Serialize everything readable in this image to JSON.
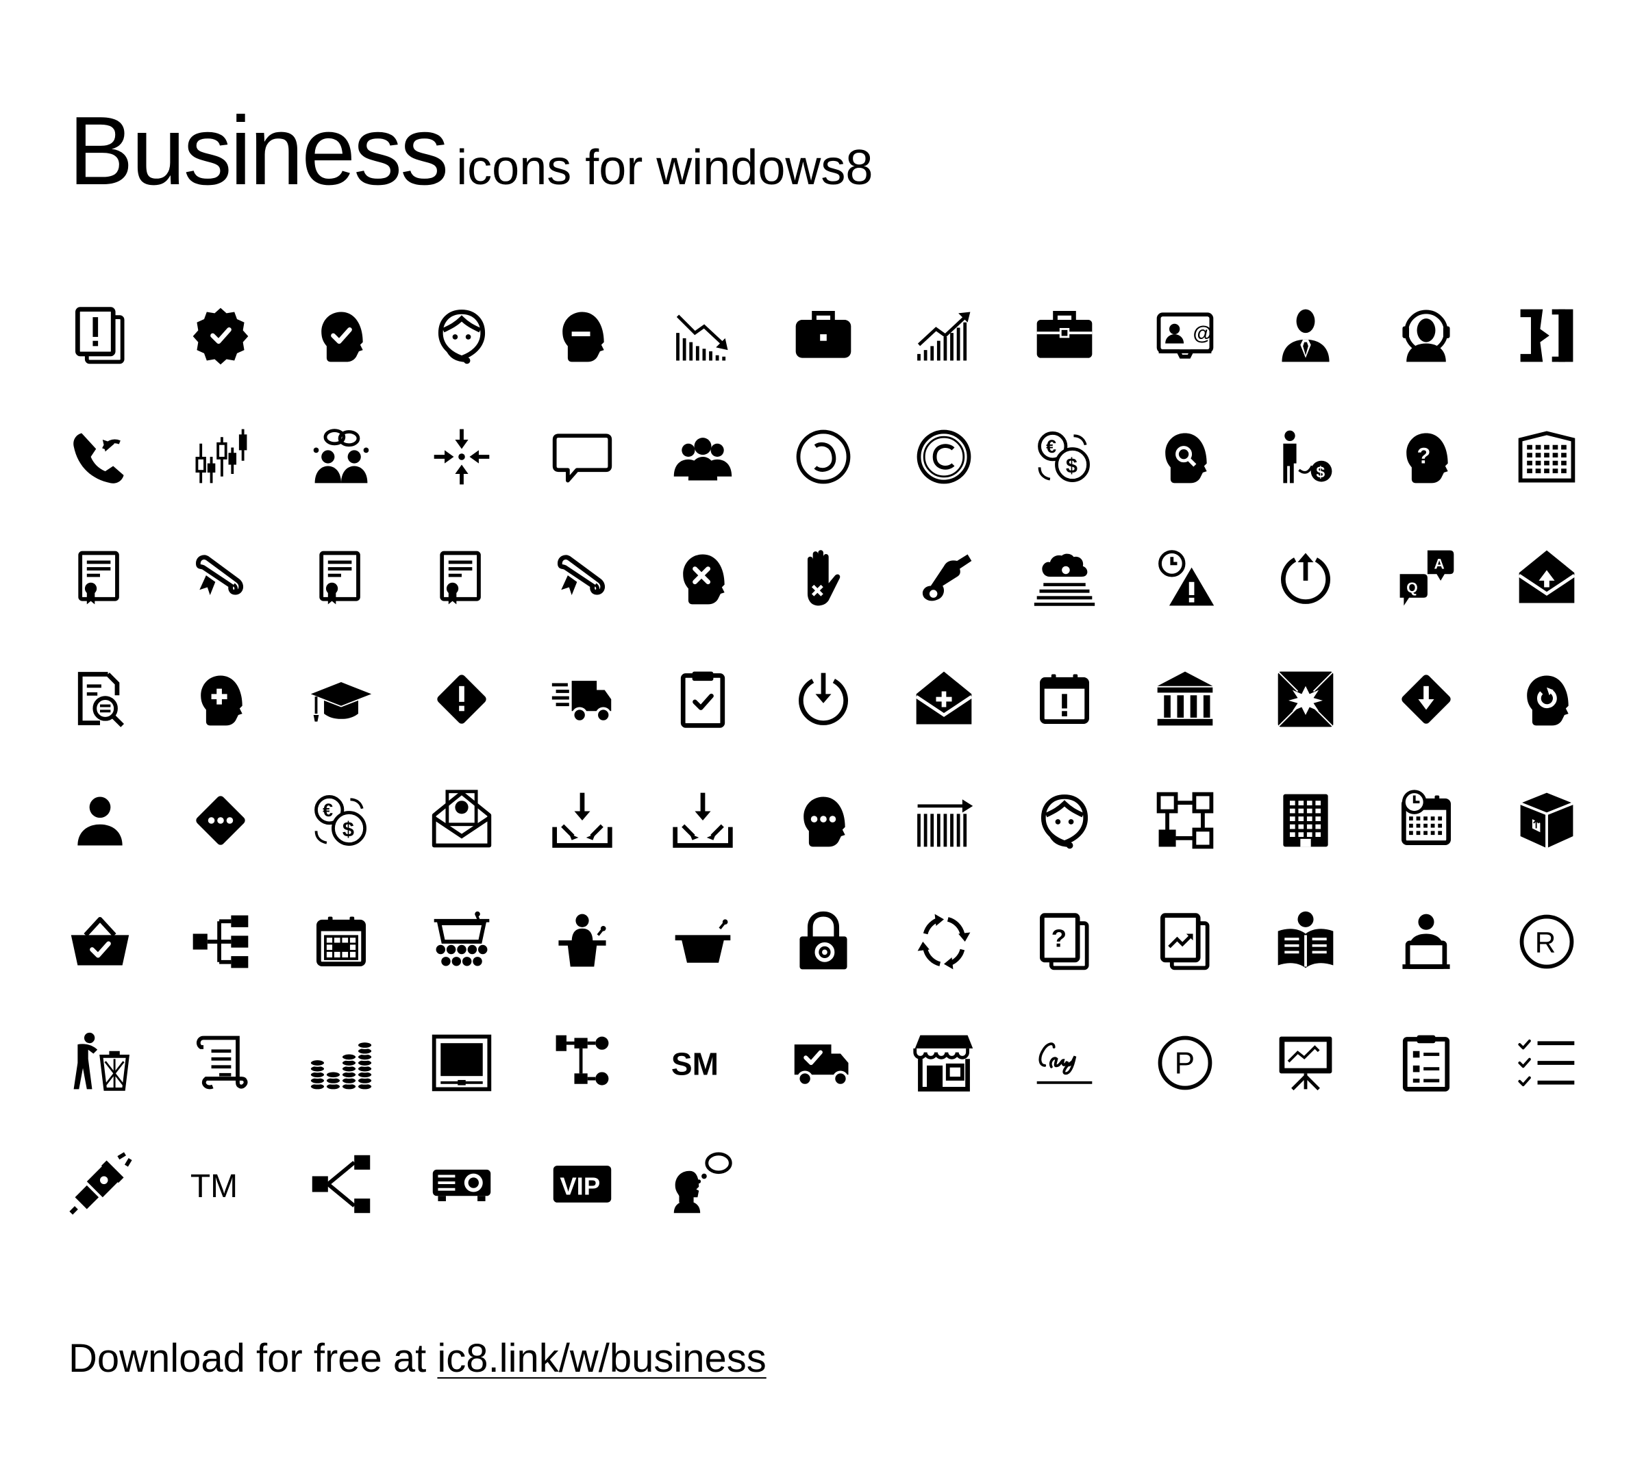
{
  "title": {
    "main": "Business",
    "sub": "icons for windows8"
  },
  "footer": {
    "prefix": "Download for free at",
    "link": "ic8.link/w/business"
  },
  "icons": [
    "document-alert-icon",
    "verified-badge-icon",
    "approved-head-icon",
    "support-agent-icon",
    "remove-user-head-icon",
    "decreasing-chart-icon",
    "briefcase-icon",
    "increasing-chart-icon",
    "portfolio-icon",
    "business-card-icon",
    "businessman-icon",
    "customer-support-icon",
    "exit-door-icon",
    "callback-phone-icon",
    "candlestick-chart-icon",
    "conference-call-icon",
    "collapse-arrows-icon",
    "comments-icon",
    "group-icon",
    "copyleft-icon",
    "copyright-icon",
    "currency-exchange-icon",
    "customer-insight-icon",
    "debt-icon",
    "unknown-head-icon",
    "office-building-icon",
    "certificate-icon",
    "diploma-icon",
    "certificate-icon-2",
    "certificate-icon-3",
    "diploma-icon-2",
    "delete-head-icon",
    "stop-hand-icon",
    "handshake-icon",
    "cloud-stairs-icon",
    "deadline-warning-icon",
    "power-off-icon",
    "faq-icon",
    "mail-upload-icon",
    "document-search-icon",
    "add-head-icon",
    "graduation-cap-icon",
    "warning-diamond-icon",
    "fast-delivery-icon",
    "clipboard-approve-icon",
    "power-down-icon",
    "mail-add-icon",
    "calendar-alert-icon",
    "bank-icon",
    "broken-window-icon",
    "download-diamond-icon",
    "refresh-head-icon",
    "person-icon",
    "more-diamond-icon",
    "currency-exchange-icon-2",
    "mail-money-icon",
    "inbox-down-icon",
    "inbox-down-icon-2",
    "thinking-dots-head-icon",
    "barcode-growth-icon",
    "headset-agent-icon",
    "workflow-icon",
    "building-icon",
    "schedule-calendar-icon",
    "package-box-icon",
    "shopping-basket-icon",
    "hierarchy-tree-icon",
    "calendar-grid-icon",
    "audience-stage-icon",
    "speaker-podium-icon",
    "podium-icon",
    "padlock-icon",
    "sync-arrows-icon",
    "question-document-icon",
    "report-document-icon",
    "reading-person-icon",
    "laptop-user-icon",
    "registered-icon",
    "waste-bin-person-icon",
    "scroll-document-icon",
    "coins-stack-icon",
    "monitor-icon",
    "process-flow-icon",
    "service-mark-icon",
    "delivery-truck-check-icon",
    "storefront-icon",
    "signature-icon",
    "parking-icon",
    "presentation-board-icon",
    "checklist-clipboard-icon",
    "todo-list-icon",
    "power-plug-icon",
    "trademark-icon",
    "share-network-icon",
    "projector-icon",
    "vip-icon",
    "thinking-person-icon"
  ]
}
